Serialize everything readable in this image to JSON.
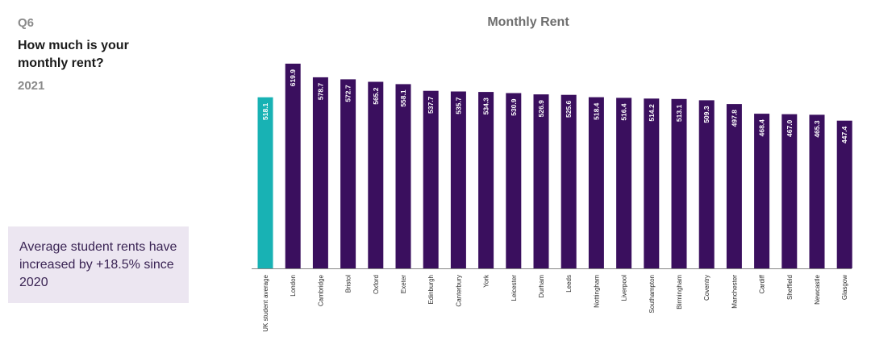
{
  "question": {
    "code": "Q6",
    "text": "How much is your monthly rent?",
    "year": "2021"
  },
  "callout": {
    "text": "Average student rents have increased by +18.5% since 2020"
  },
  "colors": {
    "highlight_bar": "#18b2b4",
    "bar": "#3a0f5e",
    "title": "#6e6e6e",
    "axis": "#888888"
  },
  "chart_data": {
    "type": "bar",
    "title": "Monthly Rent",
    "xlabel": "",
    "ylabel": "",
    "ylim": [
      0,
      640
    ],
    "grid": false,
    "legend": "none",
    "data_labels": "inside-top-rotated",
    "categories": [
      "UK student average",
      "London",
      "Cambridge",
      "Bristol",
      "Oxford",
      "Exeter",
      "Edinburgh",
      "Canterbury",
      "York",
      "Leicester",
      "Durham",
      "Leeds",
      "Nottingham",
      "Liverpool",
      "Southampton",
      "Birmingham",
      "Coventry",
      "Manchester",
      "Cardiff",
      "Sheffield",
      "Newcastle",
      "Glasgow"
    ],
    "values": [
      518.1,
      619.9,
      578.7,
      572.7,
      565.2,
      558.1,
      537.7,
      535.7,
      534.3,
      530.9,
      526.9,
      525.6,
      518.4,
      516.4,
      514.2,
      513.1,
      509.3,
      497.8,
      468.4,
      467.0,
      465.3,
      447.4
    ],
    "value_labels": [
      "518.1",
      "619.9",
      "578.7",
      "572.7",
      "565.2",
      "558.1",
      "537.7",
      "535.7",
      "534.3",
      "530.9",
      "526.9",
      "525.6",
      "518.4",
      "516.4",
      "514.2",
      "513.1",
      "509.3",
      "497.8",
      "468.4",
      "467.0",
      "465.3",
      "447.4"
    ],
    "highlight_index": 0
  }
}
